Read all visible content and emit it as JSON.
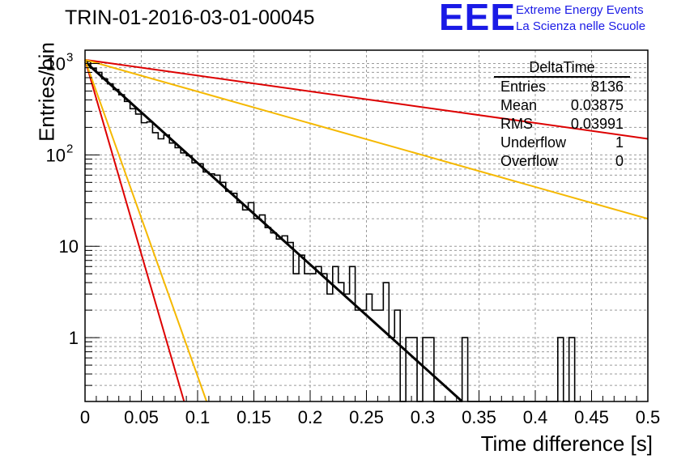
{
  "header": {
    "run_title": "TRIN-01-2016-03-01-00045",
    "logo_mark": "EEE",
    "logo_line1": "Extreme Energy Events",
    "logo_line2": "La Scienza nelle Scuole"
  },
  "stats": {
    "title": "DeltaTime",
    "rows": [
      {
        "label": "Entries",
        "value": "8136"
      },
      {
        "label": "Mean",
        "value": "0.03875"
      },
      {
        "label": "RMS",
        "value": "0.03991"
      },
      {
        "label": "Underflow",
        "value": "1"
      },
      {
        "label": "Overflow",
        "value": "0"
      }
    ]
  },
  "chart_data": {
    "type": "histogram",
    "xlabel": "Time difference [s]",
    "ylabel": "Entries/bin",
    "xlim": [
      0,
      0.5
    ],
    "ylim": [
      0.2,
      1400
    ],
    "yscale": "log",
    "grid": true,
    "x_ticks": [
      "0",
      "0.05",
      "0.1",
      "0.15",
      "0.2",
      "0.25",
      "0.3",
      "0.35",
      "0.4",
      "0.45",
      "0.5"
    ],
    "y_ticks": [
      "1",
      "10",
      "10^2",
      "10^3"
    ],
    "bin_width": 0.005,
    "histogram": [
      {
        "x": 0.0,
        "y": 1050
      },
      {
        "x": 0.005,
        "y": 890
      },
      {
        "x": 0.01,
        "y": 800
      },
      {
        "x": 0.015,
        "y": 680
      },
      {
        "x": 0.02,
        "y": 600
      },
      {
        "x": 0.025,
        "y": 520
      },
      {
        "x": 0.03,
        "y": 455
      },
      {
        "x": 0.035,
        "y": 385
      },
      {
        "x": 0.04,
        "y": 320
      },
      {
        "x": 0.045,
        "y": 280
      },
      {
        "x": 0.05,
        "y": 225
      },
      {
        "x": 0.055,
        "y": 230
      },
      {
        "x": 0.06,
        "y": 175
      },
      {
        "x": 0.065,
        "y": 150
      },
      {
        "x": 0.07,
        "y": 165
      },
      {
        "x": 0.075,
        "y": 135
      },
      {
        "x": 0.08,
        "y": 120
      },
      {
        "x": 0.085,
        "y": 105
      },
      {
        "x": 0.09,
        "y": 98
      },
      {
        "x": 0.095,
        "y": 82
      },
      {
        "x": 0.1,
        "y": 80
      },
      {
        "x": 0.105,
        "y": 65
      },
      {
        "x": 0.11,
        "y": 62
      },
      {
        "x": 0.115,
        "y": 60
      },
      {
        "x": 0.12,
        "y": 50
      },
      {
        "x": 0.125,
        "y": 40
      },
      {
        "x": 0.13,
        "y": 38
      },
      {
        "x": 0.135,
        "y": 30
      },
      {
        "x": 0.14,
        "y": 25
      },
      {
        "x": 0.145,
        "y": 30
      },
      {
        "x": 0.15,
        "y": 20
      },
      {
        "x": 0.155,
        "y": 22
      },
      {
        "x": 0.16,
        "y": 16
      },
      {
        "x": 0.165,
        "y": 14
      },
      {
        "x": 0.17,
        "y": 12
      },
      {
        "x": 0.175,
        "y": 13
      },
      {
        "x": 0.18,
        "y": 11
      },
      {
        "x": 0.185,
        "y": 5
      },
      {
        "x": 0.19,
        "y": 8
      },
      {
        "x": 0.195,
        "y": 5
      },
      {
        "x": 0.2,
        "y": 5
      },
      {
        "x": 0.205,
        "y": 6
      },
      {
        "x": 0.21,
        "y": 5
      },
      {
        "x": 0.215,
        "y": 3
      },
      {
        "x": 0.22,
        "y": 6
      },
      {
        "x": 0.225,
        "y": 4
      },
      {
        "x": 0.23,
        "y": 3
      },
      {
        "x": 0.235,
        "y": 6
      },
      {
        "x": 0.24,
        "y": 2
      },
      {
        "x": 0.245,
        "y": 2
      },
      {
        "x": 0.25,
        "y": 3
      },
      {
        "x": 0.255,
        "y": 2
      },
      {
        "x": 0.26,
        "y": 2
      },
      {
        "x": 0.265,
        "y": 4
      },
      {
        "x": 0.27,
        "y": 1
      },
      {
        "x": 0.275,
        "y": 2
      },
      {
        "x": 0.28,
        "y": 0
      },
      {
        "x": 0.285,
        "y": 1
      },
      {
        "x": 0.29,
        "y": 1
      },
      {
        "x": 0.295,
        "y": 0
      },
      {
        "x": 0.3,
        "y": 1
      },
      {
        "x": 0.305,
        "y": 1
      },
      {
        "x": 0.31,
        "y": 0
      },
      {
        "x": 0.315,
        "y": 0
      },
      {
        "x": 0.32,
        "y": 0
      },
      {
        "x": 0.325,
        "y": 0
      },
      {
        "x": 0.33,
        "y": 0
      },
      {
        "x": 0.335,
        "y": 1
      },
      {
        "x": 0.34,
        "y": 0
      },
      {
        "x": 0.345,
        "y": 0
      },
      {
        "x": 0.35,
        "y": 0
      },
      {
        "x": 0.355,
        "y": 0
      },
      {
        "x": 0.36,
        "y": 0
      },
      {
        "x": 0.365,
        "y": 0
      },
      {
        "x": 0.37,
        "y": 0
      },
      {
        "x": 0.375,
        "y": 0
      },
      {
        "x": 0.38,
        "y": 0
      },
      {
        "x": 0.385,
        "y": 0
      },
      {
        "x": 0.39,
        "y": 0
      },
      {
        "x": 0.395,
        "y": 0
      },
      {
        "x": 0.4,
        "y": 0
      },
      {
        "x": 0.405,
        "y": 0
      },
      {
        "x": 0.41,
        "y": 0
      },
      {
        "x": 0.415,
        "y": 0
      },
      {
        "x": 0.42,
        "y": 1
      },
      {
        "x": 0.425,
        "y": 0
      },
      {
        "x": 0.43,
        "y": 1
      },
      {
        "x": 0.435,
        "y": 0
      }
    ],
    "lines": [
      {
        "color": "#000000",
        "width": 3,
        "points": [
          [
            0.0,
            1050
          ],
          [
            0.335,
            0.2
          ]
        ]
      },
      {
        "color": "#dd0000",
        "width": 2,
        "points": [
          [
            0.0,
            1100
          ],
          [
            0.5,
            150
          ]
        ]
      },
      {
        "color": "#f5b800",
        "width": 2,
        "points": [
          [
            0.0,
            1100
          ],
          [
            0.5,
            20
          ]
        ]
      },
      {
        "color": "#dd0000",
        "width": 2,
        "points": [
          [
            0.0,
            1100
          ],
          [
            0.088,
            0.2
          ]
        ]
      },
      {
        "color": "#f5b800",
        "width": 2,
        "points": [
          [
            0.0,
            1100
          ],
          [
            0.108,
            0.2
          ]
        ]
      }
    ]
  }
}
